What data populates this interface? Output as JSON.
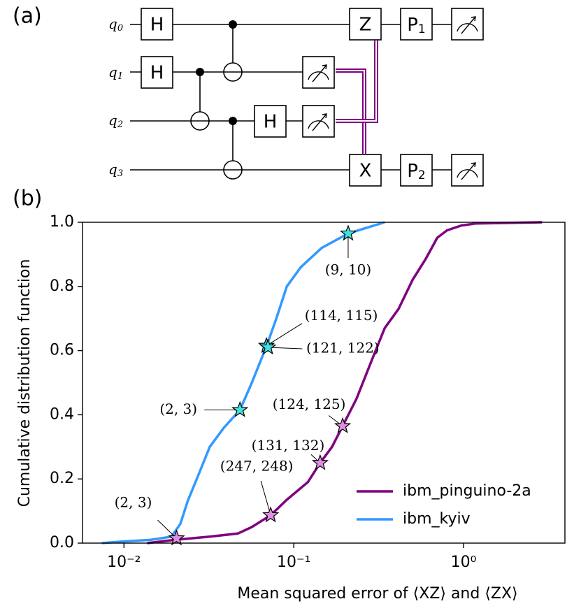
{
  "circuit": {
    "panel_label": "(a)",
    "qubits": [
      {
        "label": "q",
        "subscript": "0"
      },
      {
        "label": "q",
        "subscript": "1"
      },
      {
        "label": "q",
        "subscript": "2"
      },
      {
        "label": "q",
        "subscript": "3"
      }
    ],
    "gates": [
      {
        "label": "H"
      },
      {
        "label": "H"
      },
      {
        "label": "H"
      },
      {
        "label": "Z"
      },
      {
        "label": "X"
      },
      {
        "label": "P",
        "subscript": "1"
      },
      {
        "label": "P",
        "subscript": "2"
      }
    ]
  },
  "chart_data": {
    "type": "line",
    "panel_label": "(b)",
    "xlabel": "Mean squared error of ⟨XZ⟩ and ⟨ZX⟩",
    "ylabel": "Cumulative distribution function",
    "xscale": "log",
    "xlim": [
      0.0057,
      3.95
    ],
    "ylim": [
      0,
      1
    ],
    "xticks": [
      {
        "value": 0.01,
        "label": "10⁻²"
      },
      {
        "value": 0.1,
        "label": "10⁻¹"
      },
      {
        "value": 1,
        "label": "10⁰"
      }
    ],
    "yticks": [
      {
        "value": 0,
        "label": "0.0"
      },
      0.2,
      0.4,
      0.6,
      0.8,
      {
        "value": 1,
        "label": "1.0"
      }
    ],
    "legend": "lower right",
    "series": [
      {
        "name": "ibm_pinguino-2a",
        "color": "#800080",
        "x": [
          0.0137,
          0.0199,
          0.032,
          0.047,
          0.0566,
          0.0731,
          0.091,
          0.121,
          0.143,
          0.168,
          0.194,
          0.234,
          0.283,
          0.343,
          0.414,
          0.5,
          0.6,
          0.7,
          0.8,
          0.97,
          1.17,
          2.9
        ],
        "values": [
          0,
          0.01,
          0.02,
          0.03,
          0.05,
          0.087,
          0.135,
          0.19,
          0.25,
          0.3,
          0.365,
          0.45,
          0.56,
          0.67,
          0.73,
          0.82,
          0.887,
          0.952,
          0.975,
          0.99,
          0.996,
          1
        ]
      },
      {
        "name": "ibm_kyiv",
        "color": "#3399ff",
        "x": [
          0.0074,
          0.0098,
          0.0143,
          0.019,
          0.0215,
          0.0237,
          0.0278,
          0.032,
          0.0388,
          0.0482,
          0.0566,
          0.0692,
          0.0789,
          0.091,
          0.11,
          0.146,
          0.209,
          0.258,
          0.343
        ],
        "values": [
          0,
          0.005,
          0.01,
          0.02,
          0.06,
          0.13,
          0.22,
          0.3,
          0.36,
          0.415,
          0.5,
          0.615,
          0.7,
          0.8,
          0.86,
          0.92,
          0.965,
          0.98,
          1
        ]
      }
    ],
    "annotations": [
      {
        "text": "(2, 3)",
        "x": 0.0482,
        "y": 0.415,
        "color": "#40e0e0"
      },
      {
        "text": "(114, 115)",
        "x": 0.069,
        "y": 0.615,
        "color": "#40e0e0"
      },
      {
        "text": "(121, 122)",
        "x": 0.0705,
        "y": 0.61,
        "color": "#40e0e0"
      },
      {
        "text": "(9, 10)",
        "x": 0.209,
        "y": 0.965,
        "color": "#40e0e0"
      },
      {
        "text": "(2, 3)",
        "x": 0.0204,
        "y": 0.015,
        "color": "#e08ee0"
      },
      {
        "text": "(247, 248)",
        "x": 0.0731,
        "y": 0.087,
        "color": "#e08ee0"
      },
      {
        "text": "(131, 132)",
        "x": 0.143,
        "y": 0.25,
        "color": "#e08ee0"
      },
      {
        "text": "(124, 125)",
        "x": 0.194,
        "y": 0.365,
        "color": "#e08ee0"
      }
    ]
  }
}
